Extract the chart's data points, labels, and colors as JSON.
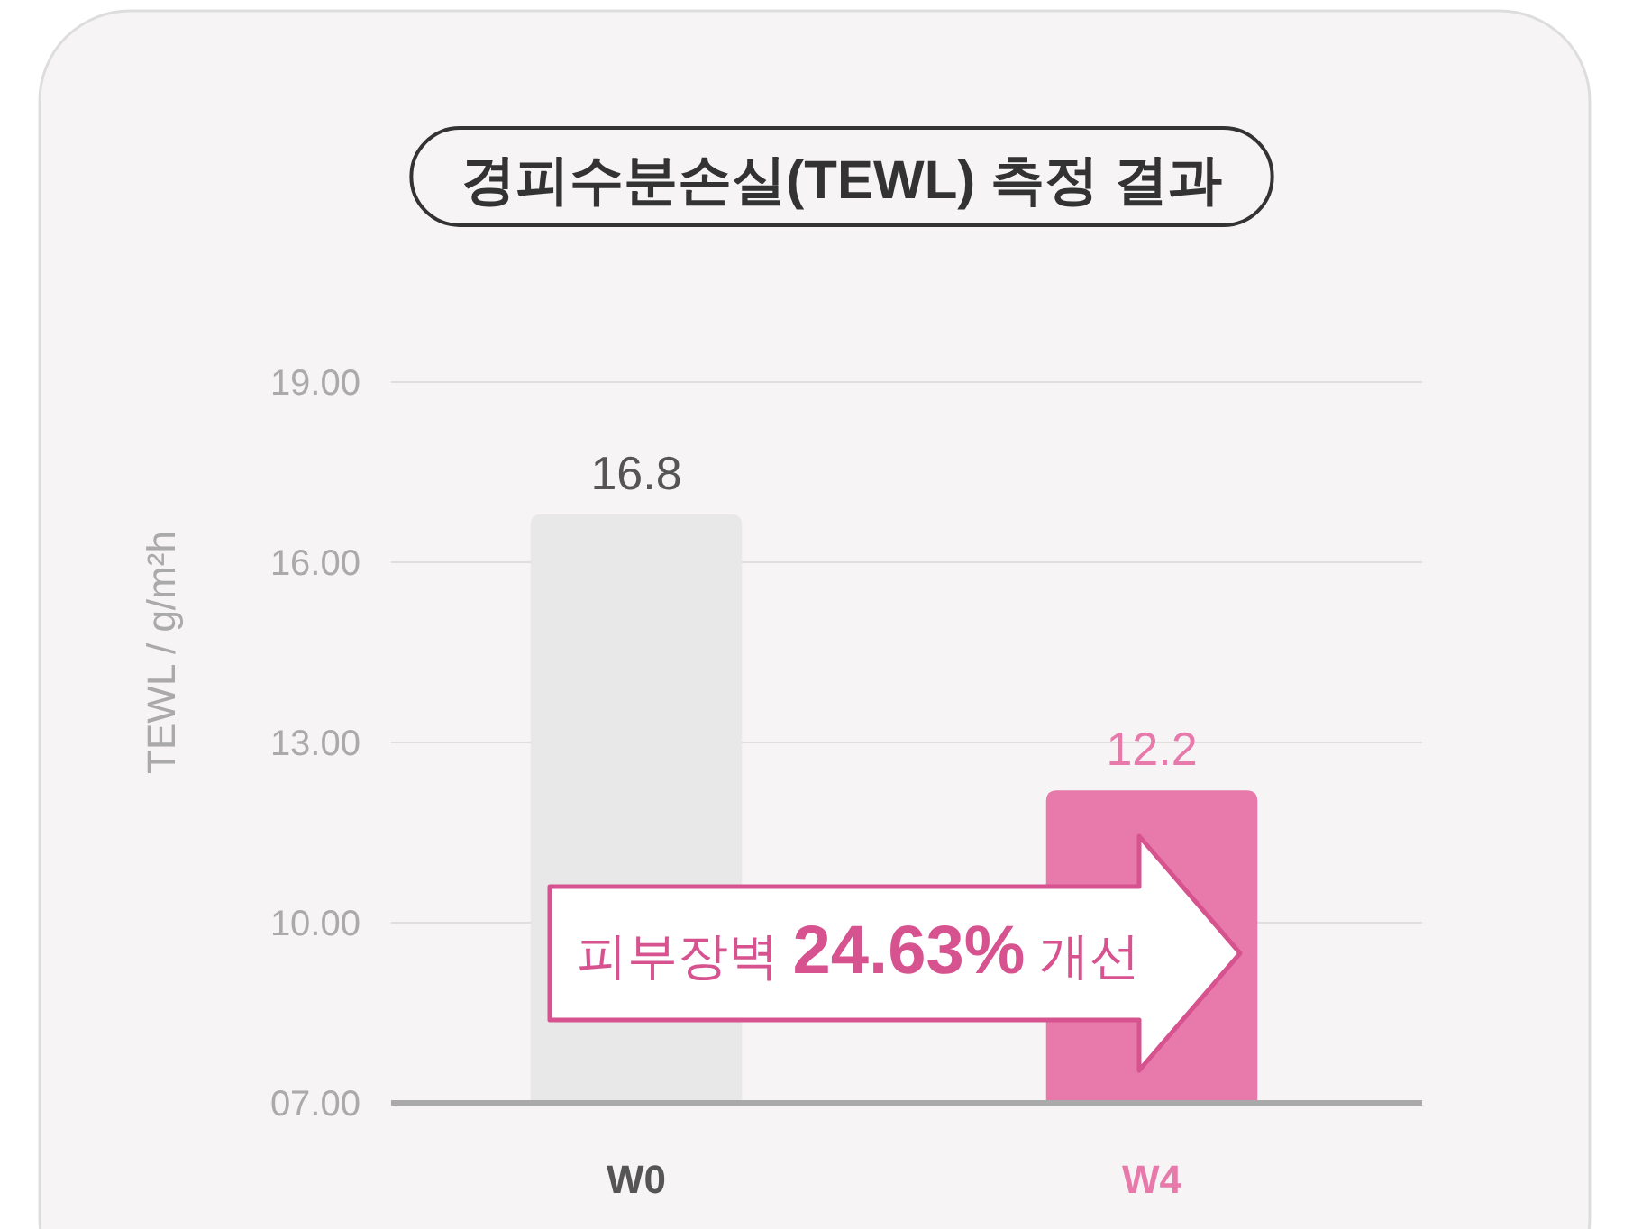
{
  "chart_data": {
    "type": "bar",
    "title": "경피수분손실(TEWL) 측정 결과",
    "ylabel": "TEWL / g/m²h",
    "categories": [
      "W0",
      "W4"
    ],
    "values": [
      16.8,
      12.2
    ],
    "colors": [
      "#e8e8e8",
      "#e87aab"
    ],
    "ylim": [
      7,
      19
    ],
    "yticks": [
      {
        "value": 7,
        "label": "07.00"
      },
      {
        "value": 10,
        "label": "10.00"
      },
      {
        "value": 13,
        "label": "13.00"
      },
      {
        "value": 16,
        "label": "16.00"
      },
      {
        "value": 19,
        "label": "19.00"
      }
    ],
    "grid": "y",
    "data_labels": true,
    "annotations": [
      "피부장벽 24.63% 개선"
    ]
  }
}
